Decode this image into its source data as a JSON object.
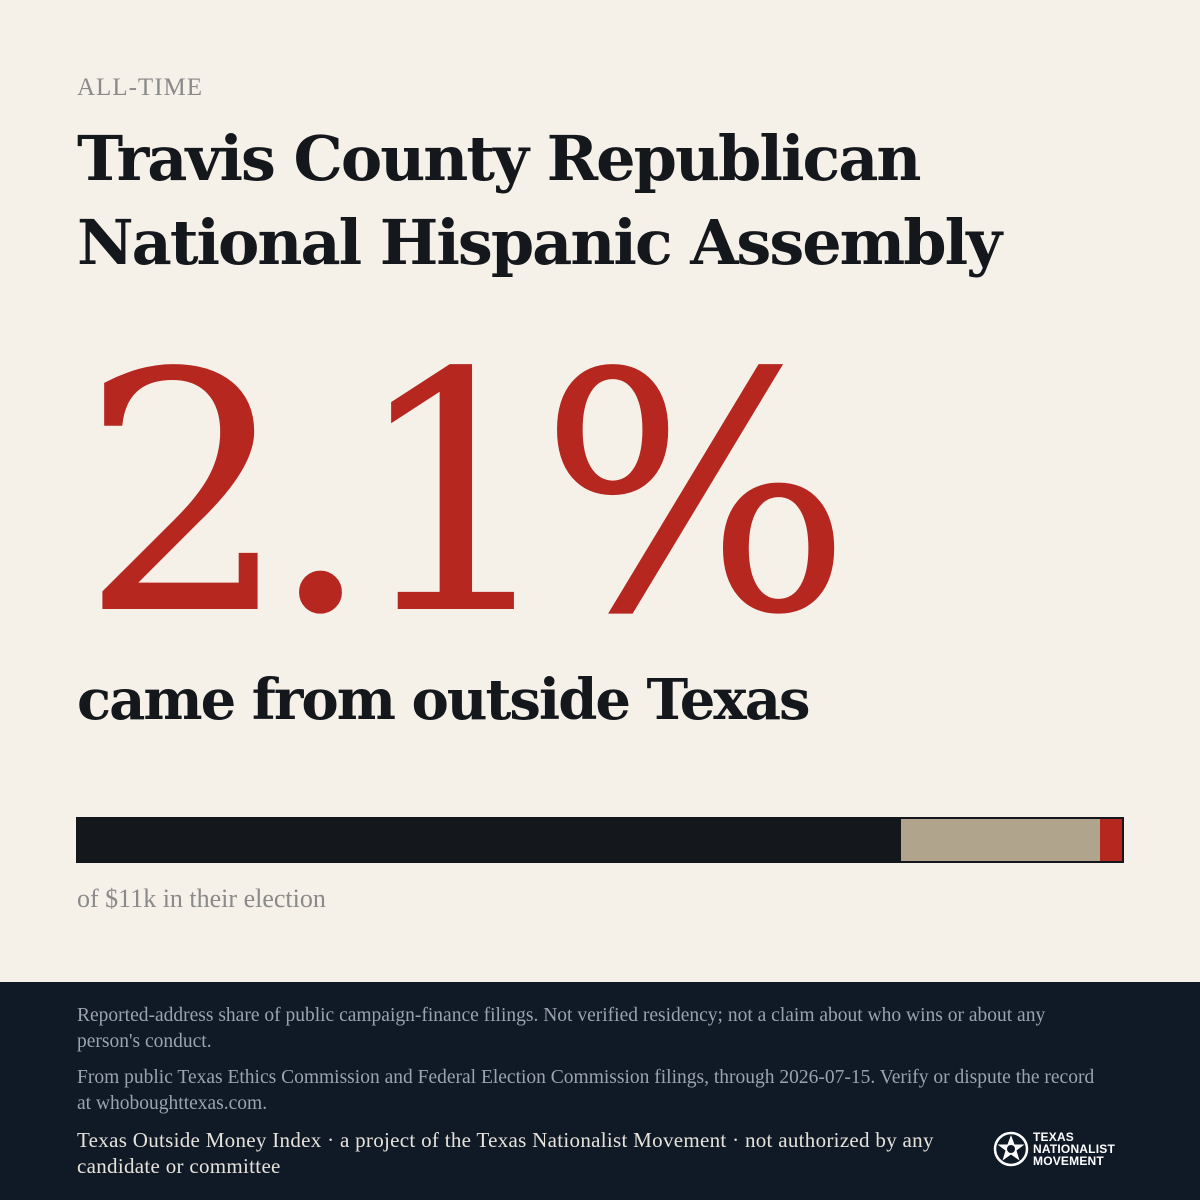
{
  "kicker": "ALL-TIME",
  "title": "Travis County Republican National Hispanic Assembly",
  "headline_pct": "2.1%",
  "subline": "came from outside Texas",
  "share_bar": {
    "segments": [
      {
        "name": "texas",
        "share": 0.788,
        "color": "#14171c"
      },
      {
        "name": "unknown",
        "share": 0.191,
        "color": "#b0a58c"
      },
      {
        "name": "outside",
        "share": 0.021,
        "color": "#b5271f"
      }
    ]
  },
  "total_text": "of $11k in their election",
  "footer": {
    "note1": "Reported-address share of public campaign-finance filings. Not verified residency; not a claim about who wins or about any person's conduct.",
    "note2": "From public Texas Ethics Commission and Federal Election Commission filings, through 2026-07-15. Verify or dispute the record at whoboughttexas.com.",
    "credit": "Texas Outside Money Index · a project of the Texas Nationalist Movement · not authorized by any candidate or committee"
  },
  "logo": {
    "icon": "star-seal-icon",
    "line1": "TEXAS",
    "line2": "NATIONALIST",
    "line3": "MOVEMENT"
  }
}
